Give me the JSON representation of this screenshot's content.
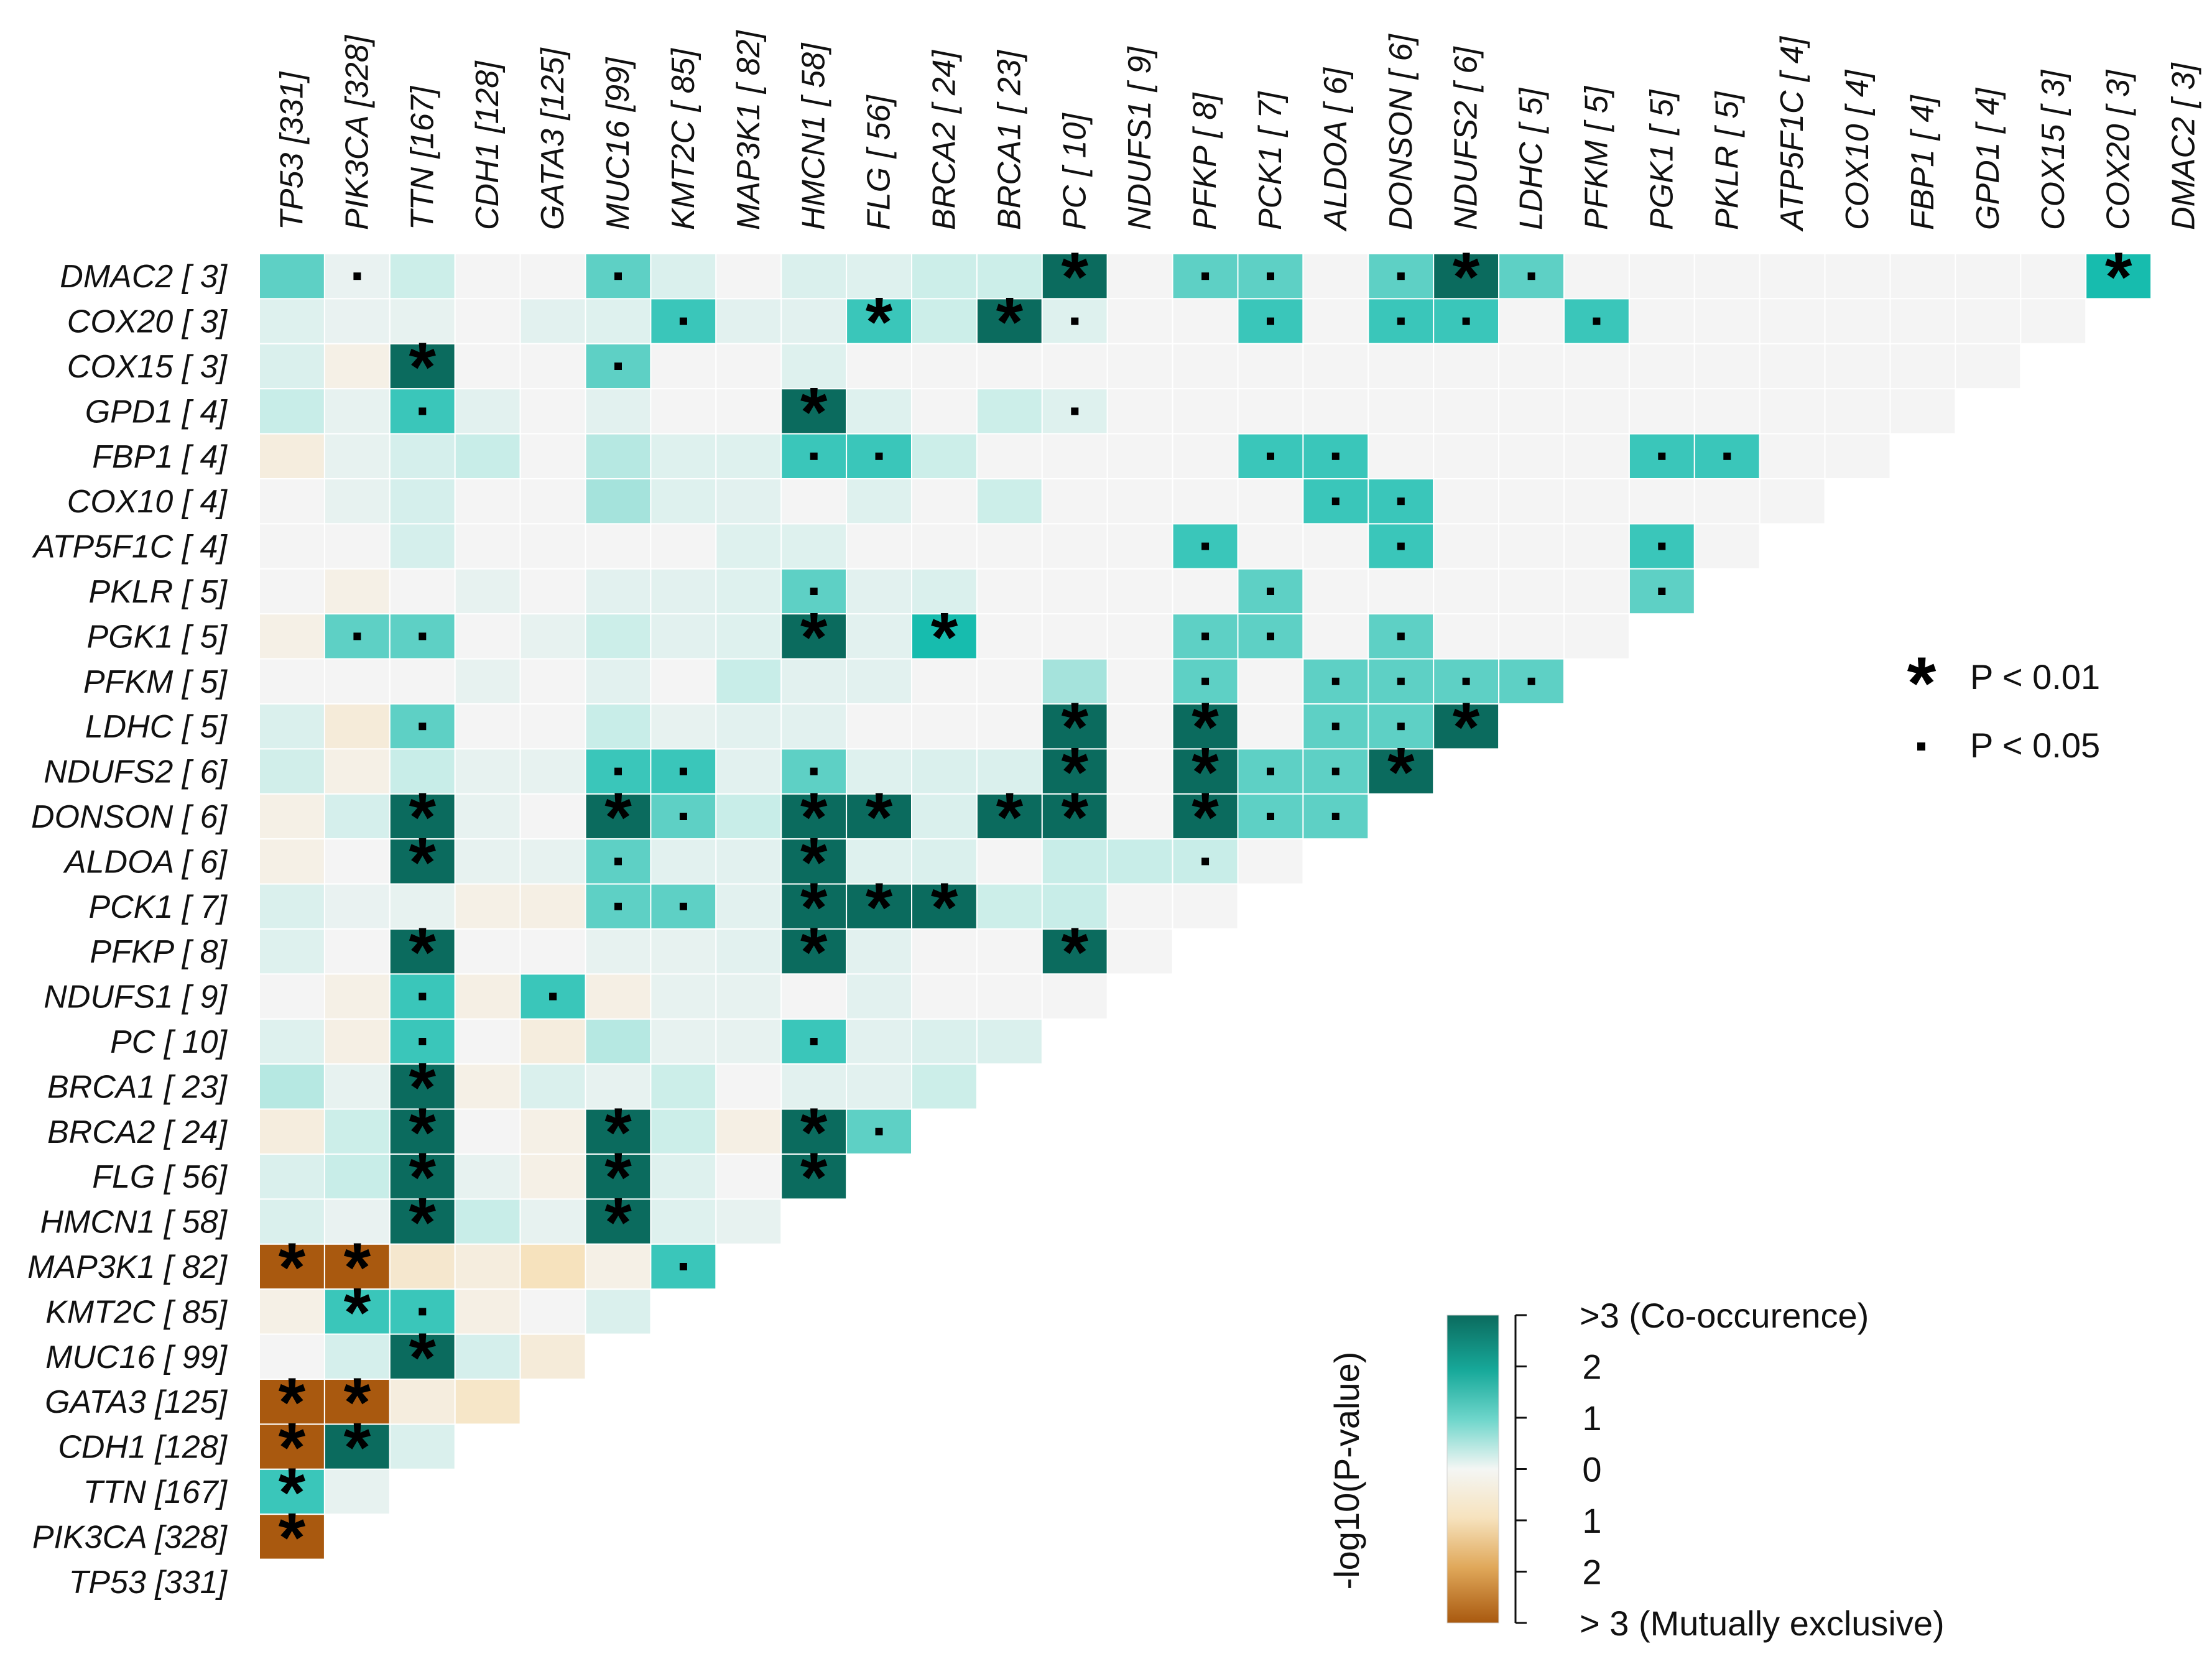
{
  "chart_data": {
    "type": "heatmap",
    "title": "",
    "genes": [
      "TP53",
      "PIK3CA",
      "TTN",
      "CDH1",
      "GATA3",
      "MUC16",
      "KMT2C",
      "MAP3K1",
      "HMCN1",
      "FLG",
      "BRCA2",
      "BRCA1",
      "PC",
      "NDUFS1",
      "PFKP",
      "PCK1",
      "ALDOA",
      "DONSON",
      "NDUFS2",
      "LDHC",
      "PFKM",
      "PGK1",
      "PKLR",
      "ATP5F1C",
      "COX10",
      "FBP1",
      "GPD1",
      "COX15",
      "COX20",
      "DMAC2"
    ],
    "column_labels": [
      "TP53 [331]",
      "PIK3CA [328]",
      "TTN [167]",
      "CDH1 [128]",
      "GATA3 [125]",
      "MUC16 [99]",
      "KMT2C [ 85]",
      "MAP3K1 [ 82]",
      "HMCN1 [ 58]",
      "FLG [ 56]",
      "BRCA2 [ 24]",
      "BRCA1 [ 23]",
      "PC [ 10]",
      "NDUFS1 [ 9]",
      "PFKP [ 8]",
      "PCK1 [ 7]",
      "ALDOA [ 6]",
      "DONSON [ 6]",
      "NDUFS2 [ 6]",
      "LDHC [ 5]",
      "PFKM [ 5]",
      "PGK1 [ 5]",
      "PKLR [ 5]",
      "ATP5F1C [ 4]",
      "COX10 [ 4]",
      "FBP1 [ 4]",
      "GPD1 [ 4]",
      "COX15 [ 3]",
      "COX20 [ 3]",
      "DMAC2 [ 3]"
    ],
    "row_labels": [
      "DMAC2 [ 3]",
      "COX20 [ 3]",
      "COX15 [ 3]",
      "GPD1 [ 4]",
      "FBP1 [ 4]",
      "COX10 [ 4]",
      "ATP5F1C [ 4]",
      "PKLR [ 5]",
      "PGK1 [ 5]",
      "PFKM [ 5]",
      "LDHC [ 5]",
      "NDUFS2 [ 6]",
      "DONSON [ 6]",
      "ALDOA [ 6]",
      "PCK1 [ 7]",
      "PFKP [ 8]",
      "NDUFS1 [ 9]",
      "PC [ 10]",
      "BRCA1 [ 23]",
      "BRCA2 [ 24]",
      "FLG [ 56]",
      "HMCN1 [ 58]",
      "MAP3K1 [ 82]",
      "KMT2C [ 85]",
      "MUC16 [ 99]",
      "GATA3 [125]",
      "CDH1 [128]",
      "TTN [167]",
      "PIK3CA [328]",
      "TP53 [331]"
    ],
    "value_note": "signed -log10(P-value): positive = co-occurrence, negative = mutual exclusivity, clipped to +/-3",
    "values": [
      [
        1.6,
        0.1,
        0.9,
        0,
        0,
        1.6,
        0.6,
        0,
        0.6,
        0.5,
        0.9,
        0.9,
        3,
        0,
        1.6,
        1.6,
        0,
        1.6,
        3,
        1.6,
        0,
        0,
        0,
        0,
        0,
        0,
        0,
        0,
        2.0
      ],
      [
        0.5,
        0.1,
        0.3,
        0,
        0.4,
        0.5,
        1.8,
        0.4,
        0.4,
        1.8,
        0.9,
        3,
        0.5,
        0,
        0,
        1.8,
        0,
        1.8,
        1.8,
        0,
        1.8,
        0,
        0,
        0,
        0,
        0,
        0,
        0
      ],
      [
        0.6,
        -0.2,
        3,
        0,
        0,
        1.6,
        0,
        0,
        0.5,
        0,
        0,
        0,
        0,
        0,
        0,
        0,
        0,
        0,
        0,
        0,
        0,
        0,
        0,
        0,
        0,
        0,
        0
      ],
      [
        1.0,
        0.3,
        1.8,
        0.4,
        0,
        0.4,
        0,
        0,
        3,
        0.5,
        0,
        0.9,
        0.5,
        0,
        0,
        0,
        0,
        0,
        0,
        0,
        0,
        0,
        0,
        0,
        0,
        0
      ],
      [
        -0.4,
        0.3,
        0.7,
        1.0,
        0,
        1.1,
        0.5,
        0.5,
        1.8,
        1.8,
        0.9,
        0,
        0,
        0,
        0,
        1.8,
        1.8,
        0,
        0,
        0,
        0,
        1.8,
        1.8,
        0,
        0
      ],
      [
        0,
        0.3,
        0.7,
        0,
        0,
        1.2,
        0.5,
        0.4,
        0,
        0.5,
        0,
        0.9,
        0,
        0,
        0,
        0,
        1.8,
        1.8,
        0,
        0,
        0,
        0,
        0,
        0
      ],
      [
        0,
        0,
        0.7,
        0,
        0,
        0,
        0,
        0.5,
        0.5,
        0,
        0,
        0,
        0,
        0,
        1.8,
        0,
        0,
        1.8,
        0,
        0,
        0,
        1.8,
        0
      ],
      [
        0,
        -0.2,
        0,
        0.3,
        0,
        0.4,
        0.4,
        0.5,
        1.6,
        0.4,
        0.6,
        0,
        0,
        0,
        0,
        1.6,
        0,
        0,
        0,
        0,
        0,
        1.6
      ],
      [
        -0.2,
        1.6,
        1.6,
        0,
        0.3,
        0.9,
        0.4,
        0.5,
        3,
        0.4,
        2.0,
        0,
        0,
        0,
        1.6,
        1.6,
        0,
        1.6,
        0,
        0,
        0
      ],
      [
        0,
        0,
        0,
        0.3,
        0,
        0.4,
        0,
        1.0,
        0.4,
        0.4,
        0,
        0,
        1.2,
        0,
        1.6,
        0,
        1.6,
        1.6,
        1.6,
        1.6
      ],
      [
        0.6,
        -0.5,
        1.6,
        0,
        0,
        1.0,
        0.3,
        0.4,
        0.4,
        0,
        0,
        0,
        3,
        0,
        3,
        0,
        1.6,
        1.6,
        3
      ],
      [
        0.8,
        -0.2,
        1.0,
        0.3,
        0.3,
        1.8,
        1.8,
        0.4,
        1.6,
        0.5,
        0.6,
        0.6,
        3,
        0,
        3,
        1.6,
        1.6,
        3
      ],
      [
        -0.2,
        0.7,
        3,
        0.3,
        0,
        3,
        1.6,
        1.0,
        3,
        3,
        0.6,
        3,
        3,
        0,
        3,
        1.6,
        1.6
      ],
      [
        -0.2,
        0,
        3,
        0.3,
        0.3,
        1.6,
        0.4,
        0.4,
        3,
        0.5,
        0.6,
        0,
        1.0,
        1.0,
        1.0,
        0
      ],
      [
        0.6,
        0.2,
        0.3,
        -0.2,
        -0.3,
        1.6,
        1.6,
        0.4,
        3,
        3,
        3,
        0.9,
        1.0,
        0,
        0
      ],
      [
        0.5,
        0,
        3,
        0,
        0,
        0.3,
        0.3,
        0.4,
        3,
        0.4,
        0,
        0,
        3,
        0
      ],
      [
        0,
        -0.2,
        1.8,
        -0.3,
        1.8,
        -0.3,
        0.3,
        0.3,
        0,
        0.4,
        0,
        0,
        0
      ],
      [
        0.5,
        -0.3,
        1.8,
        0,
        -0.4,
        1.1,
        0.3,
        0.3,
        1.8,
        0.4,
        0.6,
        0.6
      ],
      [
        1.1,
        0.3,
        3,
        -0.2,
        0.6,
        0.3,
        0.9,
        0,
        0.4,
        0.4,
        0.9
      ],
      [
        -0.4,
        0.9,
        3,
        0,
        -0.2,
        3,
        0.9,
        -0.3,
        3,
        1.6
      ],
      [
        0.6,
        1.0,
        3,
        0.3,
        -0.2,
        3,
        0.5,
        0,
        3
      ],
      [
        0.6,
        0.2,
        3,
        1.0,
        0.3,
        3,
        0.5,
        0.3
      ],
      [
        -3,
        -3,
        -0.7,
        -0.4,
        -1.0,
        -0.2,
        1.8
      ],
      [
        -0.2,
        1.8,
        1.8,
        -0.3,
        0,
        0.6
      ],
      [
        0,
        0.7,
        3,
        0.7,
        -0.5
      ],
      [
        -3,
        -3,
        -0.4,
        -0.8
      ],
      [
        -3,
        3,
        0.6
      ],
      [
        1.8,
        0.3
      ],
      [
        -3
      ]
    ],
    "significance_p001": [
      [
        0,
        12
      ],
      [
        0,
        18
      ],
      [
        0,
        28
      ],
      [
        1,
        9
      ],
      [
        1,
        11
      ],
      [
        2,
        2
      ],
      [
        3,
        8
      ],
      [
        8,
        8
      ],
      [
        8,
        10
      ],
      [
        10,
        12
      ],
      [
        10,
        14
      ],
      [
        10,
        18
      ],
      [
        11,
        12
      ],
      [
        11,
        14
      ],
      [
        11,
        17
      ],
      [
        12,
        2
      ],
      [
        12,
        5
      ],
      [
        12,
        8
      ],
      [
        12,
        9
      ],
      [
        12,
        11
      ],
      [
        12,
        12
      ],
      [
        12,
        14
      ],
      [
        13,
        2
      ],
      [
        13,
        8
      ],
      [
        14,
        8
      ],
      [
        14,
        9
      ],
      [
        14,
        10
      ],
      [
        15,
        2
      ],
      [
        15,
        8
      ],
      [
        15,
        12
      ],
      [
        18,
        2
      ],
      [
        19,
        2
      ],
      [
        19,
        5
      ],
      [
        19,
        8
      ],
      [
        20,
        2
      ],
      [
        20,
        5
      ],
      [
        20,
        8
      ],
      [
        21,
        2
      ],
      [
        21,
        5
      ],
      [
        22,
        0
      ],
      [
        22,
        1
      ],
      [
        23,
        1
      ],
      [
        24,
        2
      ],
      [
        25,
        0
      ],
      [
        25,
        1
      ],
      [
        26,
        0
      ],
      [
        26,
        1
      ],
      [
        27,
        0
      ],
      [
        28,
        0
      ]
    ],
    "significance_p005": [
      [
        0,
        1
      ],
      [
        0,
        5
      ],
      [
        0,
        14
      ],
      [
        0,
        15
      ],
      [
        0,
        17
      ],
      [
        0,
        19
      ],
      [
        1,
        6
      ],
      [
        1,
        12
      ],
      [
        1,
        15
      ],
      [
        1,
        17
      ],
      [
        1,
        18
      ],
      [
        1,
        20
      ],
      [
        2,
        5
      ],
      [
        3,
        2
      ],
      [
        3,
        12
      ],
      [
        4,
        8
      ],
      [
        4,
        9
      ],
      [
        4,
        15
      ],
      [
        4,
        16
      ],
      [
        4,
        21
      ],
      [
        4,
        22
      ],
      [
        5,
        16
      ],
      [
        5,
        17
      ],
      [
        6,
        14
      ],
      [
        6,
        17
      ],
      [
        6,
        21
      ],
      [
        7,
        8
      ],
      [
        7,
        15
      ],
      [
        7,
        21
      ],
      [
        8,
        1
      ],
      [
        8,
        2
      ],
      [
        8,
        14
      ],
      [
        8,
        15
      ],
      [
        8,
        17
      ],
      [
        9,
        14
      ],
      [
        9,
        16
      ],
      [
        9,
        17
      ],
      [
        9,
        18
      ],
      [
        9,
        19
      ],
      [
        10,
        2
      ],
      [
        10,
        16
      ],
      [
        10,
        17
      ],
      [
        11,
        5
      ],
      [
        11,
        6
      ],
      [
        11,
        8
      ],
      [
        11,
        15
      ],
      [
        11,
        16
      ],
      [
        12,
        6
      ],
      [
        12,
        15
      ],
      [
        12,
        16
      ],
      [
        13,
        5
      ],
      [
        13,
        14
      ],
      [
        14,
        5
      ],
      [
        14,
        6
      ],
      [
        16,
        2
      ],
      [
        16,
        4
      ],
      [
        17,
        2
      ],
      [
        17,
        8
      ],
      [
        19,
        9
      ],
      [
        22,
        6
      ],
      [
        23,
        2
      ]
    ],
    "legend": {
      "title": "-log10(P-value)",
      "labels": [
        ">3 (Co-occurence)",
        "2",
        "1",
        "0",
        "1",
        "2",
        "> 3 (Mutually exclusive)"
      ],
      "significance": [
        {
          "symbol": "*",
          "label": "P < 0.01"
        },
        {
          "symbol": "·",
          "label": "P < 0.05"
        }
      ]
    },
    "colors": {
      "co_strong": "#0b6b5e",
      "co_mid": "#17bcae",
      "co_light": "#c8ede8",
      "neutral": "#f4f4f4",
      "ex_light": "#f6e2bd",
      "ex_strong": "#a9590f"
    }
  }
}
